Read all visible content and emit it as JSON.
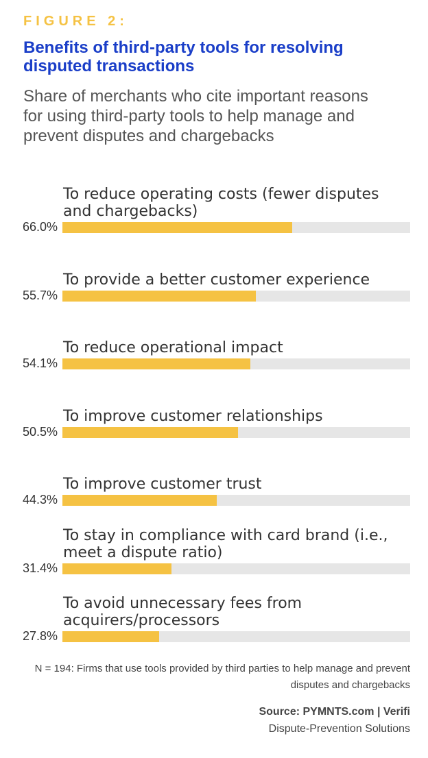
{
  "chart_data": {
    "type": "bar",
    "orientation": "horizontal",
    "figure_label": "FIGURE 2:",
    "title": "Benefits of third-party tools for resolving disputed transactions",
    "subtitle": "Share of merchants who cite important reasons for using third-party tools to help manage and prevent disputes and chargebacks",
    "categories": [
      "To reduce operating costs (fewer disputes and chargebacks)",
      "To provide a better customer experience",
      "To reduce operational impact",
      "To improve customer relationships",
      "To improve customer trust",
      "To stay in compliance with card brand (i.e., meet a dispute ratio)",
      "To avoid unnecessary fees from acquirers/processors"
    ],
    "values": [
      66.0,
      55.7,
      54.1,
      50.5,
      44.3,
      31.4,
      27.8
    ],
    "value_labels": [
      "66.0%",
      "55.7%",
      "54.1%",
      "50.5%",
      "44.3%",
      "31.4%",
      "27.8%"
    ],
    "color": "#f5c243",
    "track_color": "#e6e6e6",
    "xlim": [
      0,
      100
    ],
    "note": "N = 194: Firms that use tools provided by third parties to help manage and prevent disputes and chargebacks",
    "source": "Source: PYMNTS.com | Verifi",
    "source_detail": "Dispute-Prevention Solutions"
  }
}
